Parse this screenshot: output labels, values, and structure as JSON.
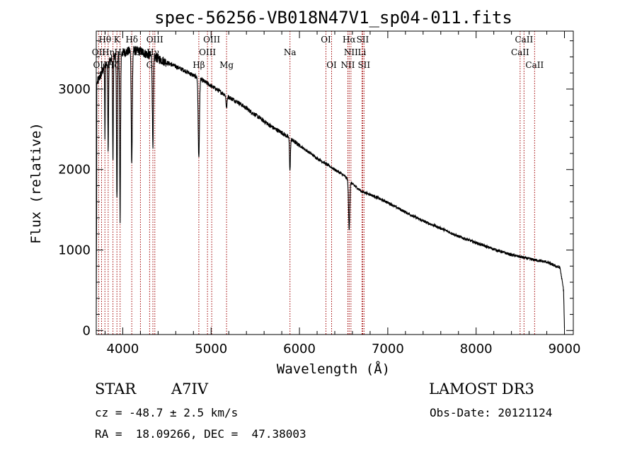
{
  "chart_data": {
    "type": "line",
    "title": "spec-56256-VB018N47V1_sp04-011.fits",
    "xlabel": "Wavelength (Å)",
    "ylabel": "Flux (relative)",
    "xlim": [
      3700,
      9100
    ],
    "ylim": [
      -50,
      3720
    ],
    "xticks": [
      4000,
      5000,
      6000,
      7000,
      8000,
      9000
    ],
    "yticks": [
      0,
      1000,
      2000,
      3000
    ],
    "grid": false,
    "continuum": {
      "x": [
        3700,
        3800,
        3900,
        4000,
        4100,
        4200,
        4300,
        4400,
        4500,
        4600,
        4700,
        4800,
        4900,
        5000,
        5100,
        5200,
        5300,
        5400,
        5500,
        5600,
        5700,
        5800,
        5900,
        6000,
        6100,
        6200,
        6300,
        6400,
        6500,
        6600,
        6700,
        6800,
        7000,
        7200,
        7400,
        7600,
        7800,
        8000,
        8200,
        8400,
        8600,
        8800,
        8900,
        8950,
        8990,
        9000
      ],
      "y": [
        3050,
        3300,
        3400,
        3450,
        3480,
        3470,
        3420,
        3380,
        3330,
        3280,
        3230,
        3170,
        3110,
        3040,
        2970,
        2900,
        2840,
        2760,
        2680,
        2600,
        2520,
        2460,
        2380,
        2300,
        2220,
        2140,
        2070,
        2000,
        1930,
        1820,
        1730,
        1690,
        1590,
        1470,
        1360,
        1270,
        1170,
        1090,
        1010,
        940,
        890,
        850,
        800,
        780,
        500,
        30
      ]
    },
    "absorption_lines": [
      {
        "name": "CaII K",
        "center": 3934,
        "depth": 1800,
        "width": 5
      },
      {
        "name": "CaII H / Hε",
        "center": 3970,
        "depth": 2100,
        "width": 5
      },
      {
        "name": "Hζ",
        "center": 3889,
        "depth": 1300,
        "width": 4
      },
      {
        "name": "Hη",
        "center": 3835,
        "depth": 1100,
        "width": 4
      },
      {
        "name": "Hθ",
        "center": 3798,
        "depth": 900,
        "width": 3
      },
      {
        "name": "Hδ",
        "center": 4102,
        "depth": 1400,
        "width": 6
      },
      {
        "name": "Hγ",
        "center": 4341,
        "depth": 1100,
        "width": 6
      },
      {
        "name": "Hβ",
        "center": 4861,
        "depth": 1000,
        "width": 7
      },
      {
        "name": "Mg",
        "center": 5175,
        "depth": 150,
        "width": 6
      },
      {
        "name": "Na",
        "center": 5893,
        "depth": 400,
        "width": 5
      },
      {
        "name": "Hα",
        "center": 6563,
        "depth": 600,
        "width": 7
      }
    ],
    "line_labels": [
      {
        "text": "Hθ",
        "x": 3798,
        "row": 1
      },
      {
        "text": "K",
        "x": 3934,
        "row": 1
      },
      {
        "text": "Hδ",
        "x": 4102,
        "row": 1
      },
      {
        "text": "OIII",
        "x": 4363,
        "row": 1
      },
      {
        "text": "OIII",
        "x": 5007,
        "row": 1
      },
      {
        "text": "OI",
        "x": 6300,
        "row": 1
      },
      {
        "text": "Hα",
        "x": 6563,
        "row": 1
      },
      {
        "text": "SII",
        "x": 6716,
        "row": 1
      },
      {
        "text": "CaII",
        "x": 8542,
        "row": 1
      },
      {
        "text": "OII",
        "x": 3727,
        "row": 2
      },
      {
        "text": "Hη",
        "x": 3835,
        "row": 2
      },
      {
        "text": "Hε",
        "x": 3970,
        "row": 2
      },
      {
        "text": "Ca",
        "x": 4200,
        "row": 2
      },
      {
        "text": "Hγ",
        "x": 4341,
        "row": 2
      },
      {
        "text": "OIII",
        "x": 4959,
        "row": 2
      },
      {
        "text": "Na",
        "x": 5893,
        "row": 2
      },
      {
        "text": "NII",
        "x": 6583,
        "row": 2
      },
      {
        "text": "Li",
        "x": 6708,
        "row": 2
      },
      {
        "text": "CaII",
        "x": 8498,
        "row": 2
      },
      {
        "text": "OIII",
        "x": 3760,
        "row": 3
      },
      {
        "text": "Hζ",
        "x": 3889,
        "row": 3
      },
      {
        "text": "G",
        "x": 4304,
        "row": 3
      },
      {
        "text": "Hβ",
        "x": 4861,
        "row": 3
      },
      {
        "text": "Mg",
        "x": 5175,
        "row": 3
      },
      {
        "text": "OI",
        "x": 6364,
        "row": 3
      },
      {
        "text": "NII",
        "x": 6548,
        "row": 3
      },
      {
        "text": "SII",
        "x": 6731,
        "row": 3
      },
      {
        "text": "CaII",
        "x": 8662,
        "row": 3
      }
    ],
    "marker_lines": [
      3727,
      3760,
      3798,
      3835,
      3889,
      3934,
      3970,
      4102,
      4200,
      4304,
      4341,
      4363,
      4861,
      4959,
      5007,
      5175,
      5893,
      6300,
      6364,
      6548,
      6563,
      6583,
      6708,
      6716,
      6731,
      8498,
      8542,
      8662
    ],
    "marker_color": "#a00000"
  },
  "info": {
    "class_label": "STAR",
    "subclass": "A7IV",
    "survey": "LAMOST DR3",
    "redshift": "cz = -48.7 ± 2.5 km/s",
    "obs_date": "Obs-Date: 20121124",
    "coords": "RA =  18.09266, DEC =  47.38003"
  }
}
